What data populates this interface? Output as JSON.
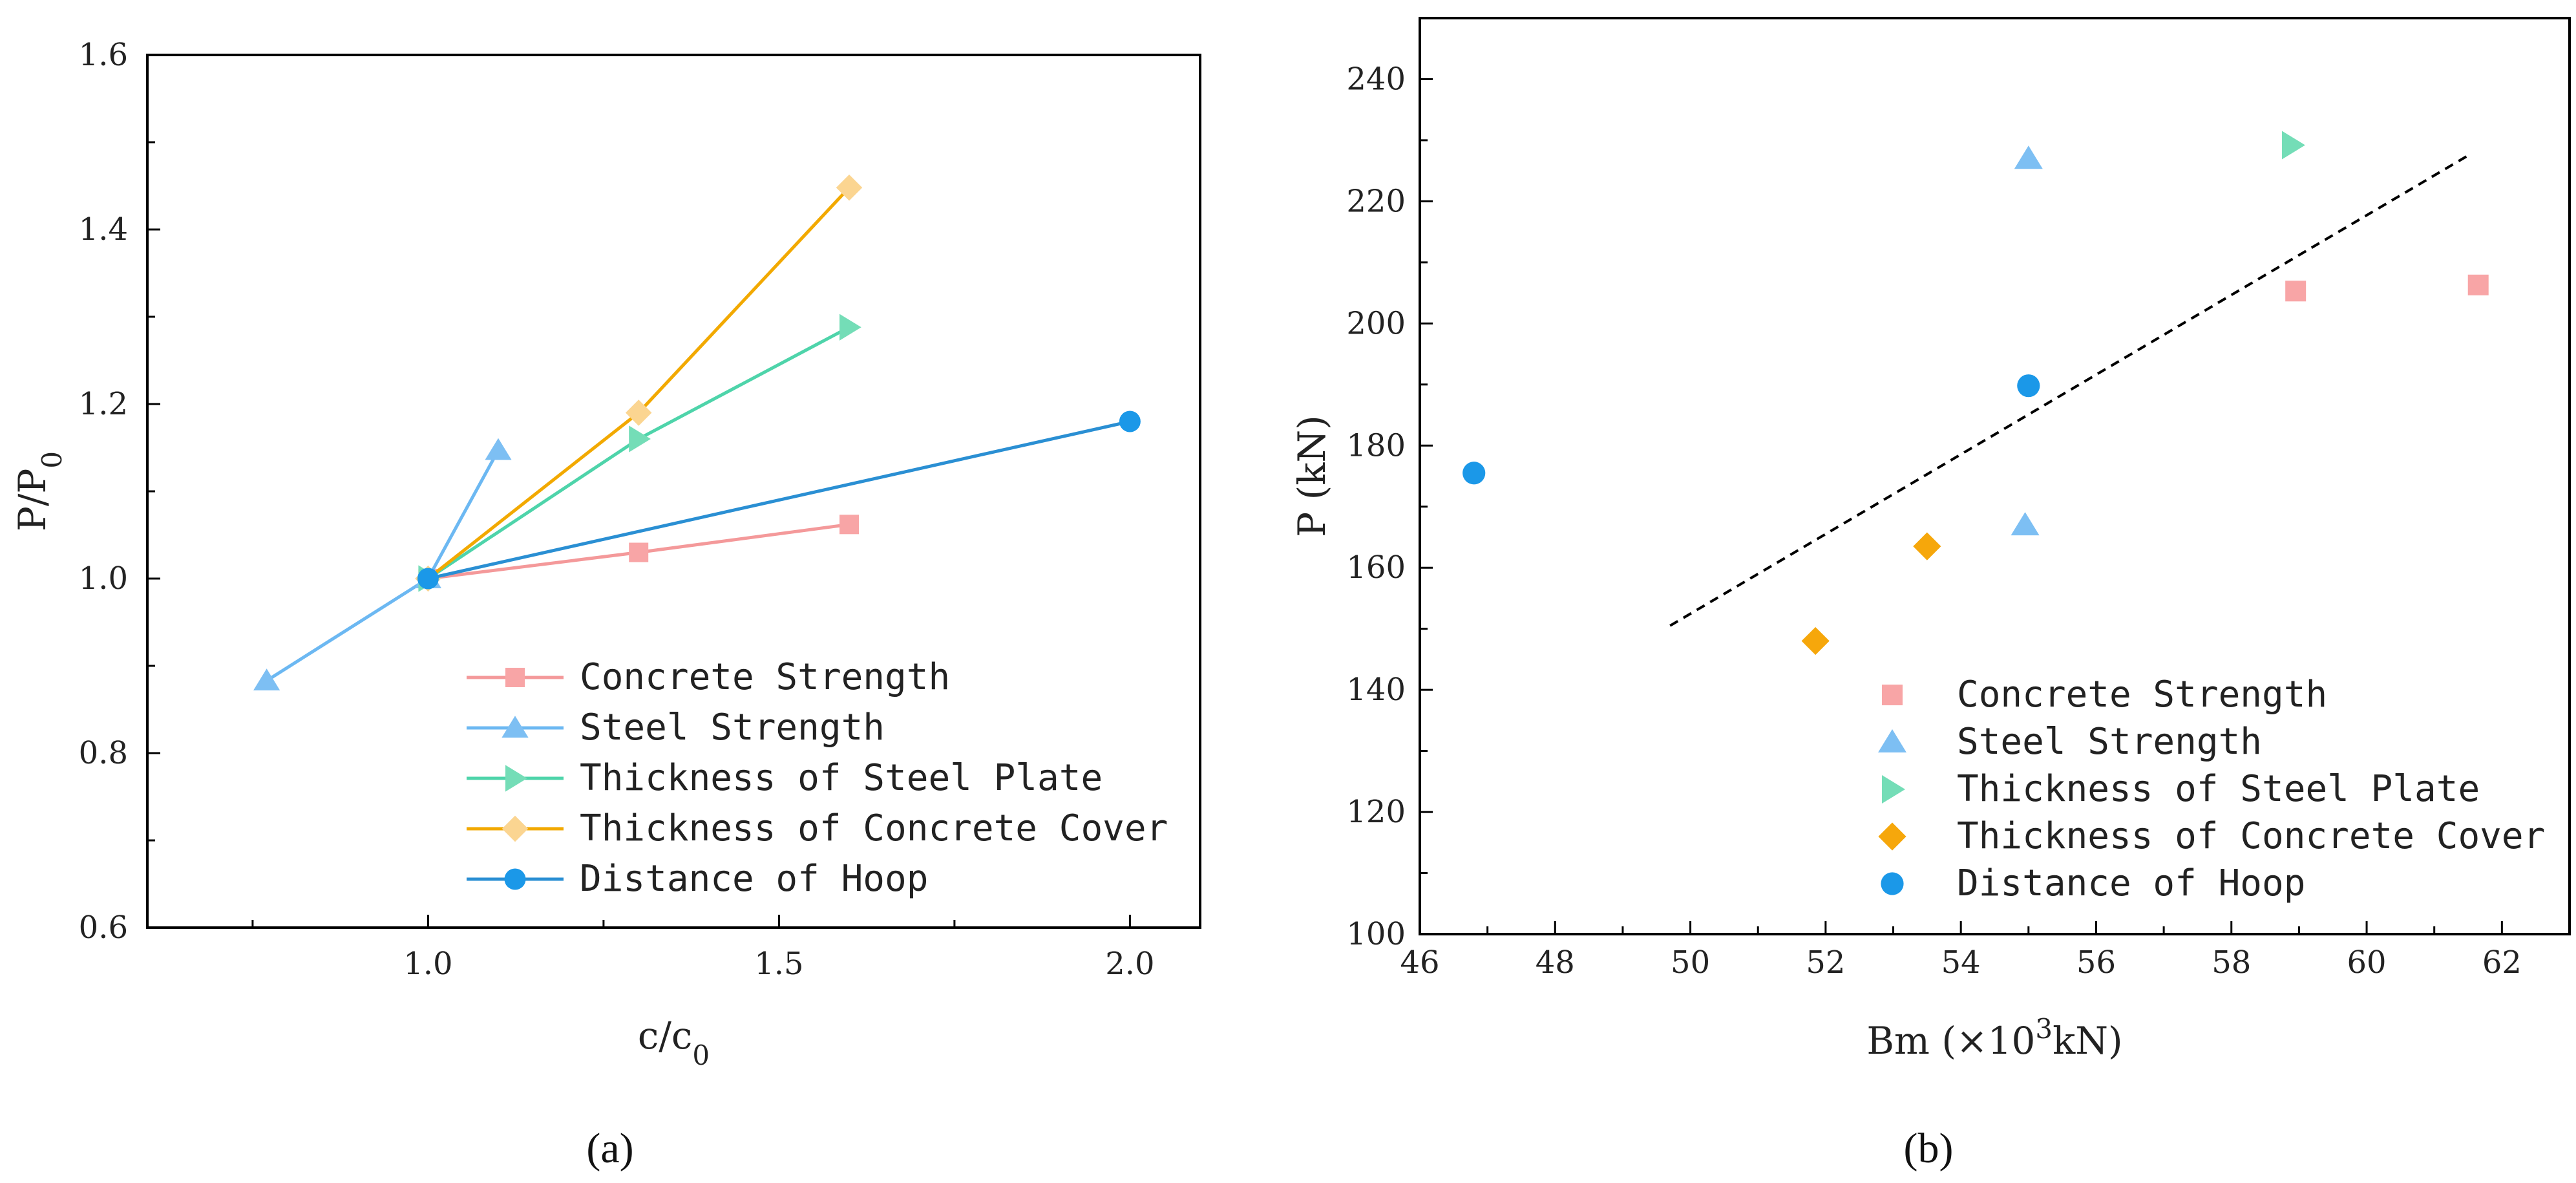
{
  "chart_data": [
    {
      "panel": "(a)",
      "type": "line",
      "xlabel": "c/c",
      "xlabel_sub": "0",
      "ylabel": "P/P",
      "ylabel_sub": "0",
      "xlim": [
        0.6,
        2.1
      ],
      "ylim": [
        0.6,
        1.6
      ],
      "xticks": [
        1.0,
        1.5,
        2.0
      ],
      "xtick_labels": [
        "1.0",
        "1.5",
        "2.0"
      ],
      "yticks": [
        0.6,
        0.8,
        1.0,
        1.2,
        1.4,
        1.6
      ],
      "ytick_labels": [
        "0.6",
        "0.8",
        "1.0",
        "1.2",
        "1.4",
        "1.6"
      ],
      "legend_position": "bottom-right",
      "series": [
        {
          "name": "Concrete Strength",
          "marker": "square",
          "line_color": "#f4999a",
          "marker_color": "#f8a5a6",
          "points": [
            [
              1.0,
              1.0
            ],
            [
              1.3,
              1.03
            ],
            [
              1.6,
              1.062
            ]
          ]
        },
        {
          "name": "Steel Strength",
          "marker": "triangle-up",
          "line_color": "#6cb8f2",
          "marker_color": "#7dbff3",
          "points": [
            [
              0.77,
              0.883
            ],
            [
              1.0,
              1.0
            ],
            [
              1.1,
              1.147
            ]
          ]
        },
        {
          "name": "Thickness of Steel Plate",
          "marker": "triangle-right",
          "line_color": "#4ed4aa",
          "marker_color": "#74ddb7",
          "points": [
            [
              1.0,
              1.0
            ],
            [
              1.3,
              1.16
            ],
            [
              1.6,
              1.288
            ]
          ]
        },
        {
          "name": "Thickness of Concrete Cover",
          "marker": "diamond",
          "line_color": "#f2a900",
          "marker_color": "#fbd591",
          "points": [
            [
              1.0,
              1.0
            ],
            [
              1.3,
              1.19
            ],
            [
              1.6,
              1.448
            ]
          ]
        },
        {
          "name": "Distance of Hoop",
          "marker": "circle",
          "line_color": "#2a8fd3",
          "marker_color": "#1b98e8",
          "points": [
            [
              1.0,
              1.0
            ],
            [
              2.0,
              1.18
            ]
          ]
        }
      ]
    },
    {
      "panel": "(b)",
      "type": "scatter",
      "xlabel": "Bm (×10",
      "xlabel_sup": "3",
      "xlabel_end": "kN)",
      "ylabel": "P (kN)",
      "xlim": [
        46,
        63
      ],
      "ylim": [
        100,
        250
      ],
      "xticks": [
        46,
        48,
        50,
        52,
        54,
        56,
        58,
        60,
        62
      ],
      "xtick_labels": [
        "46",
        "48",
        "50",
        "52",
        "54",
        "56",
        "58",
        "60",
        "62"
      ],
      "yticks": [
        100,
        120,
        140,
        160,
        180,
        200,
        220,
        240
      ],
      "ytick_labels": [
        "100",
        "120",
        "140",
        "160",
        "180",
        "200",
        "220",
        "240"
      ],
      "legend_position": "bottom-right",
      "trendline": {
        "style": "dashed",
        "color": "#000000",
        "points": [
          [
            49.7,
            150.5
          ],
          [
            61.5,
            227.5
          ]
        ]
      },
      "series": [
        {
          "name": "Concrete Strength",
          "marker": "square",
          "color": "#f8a5a6",
          "points": [
            [
              58.95,
              205.3
            ],
            [
              61.65,
              206.3
            ]
          ]
        },
        {
          "name": "Steel Strength",
          "marker": "triangle-up",
          "color": "#7dbff3",
          "points": [
            [
              55.0,
              227.0
            ],
            [
              54.95,
              167.0
            ]
          ]
        },
        {
          "name": "Thickness of Steel Plate",
          "marker": "triangle-right",
          "color": "#74ddb7",
          "points": [
            [
              58.9,
              229.2
            ]
          ]
        },
        {
          "name": "Thickness of Concrete Cover",
          "marker": "diamond",
          "color": "#f6a70b",
          "points": [
            [
              51.85,
              148.0
            ],
            [
              53.5,
              163.5
            ]
          ]
        },
        {
          "name": "Distance of Hoop",
          "marker": "circle",
          "color": "#1b98e8",
          "points": [
            [
              46.8,
              175.5
            ],
            [
              55.0,
              189.8
            ]
          ]
        }
      ]
    }
  ]
}
